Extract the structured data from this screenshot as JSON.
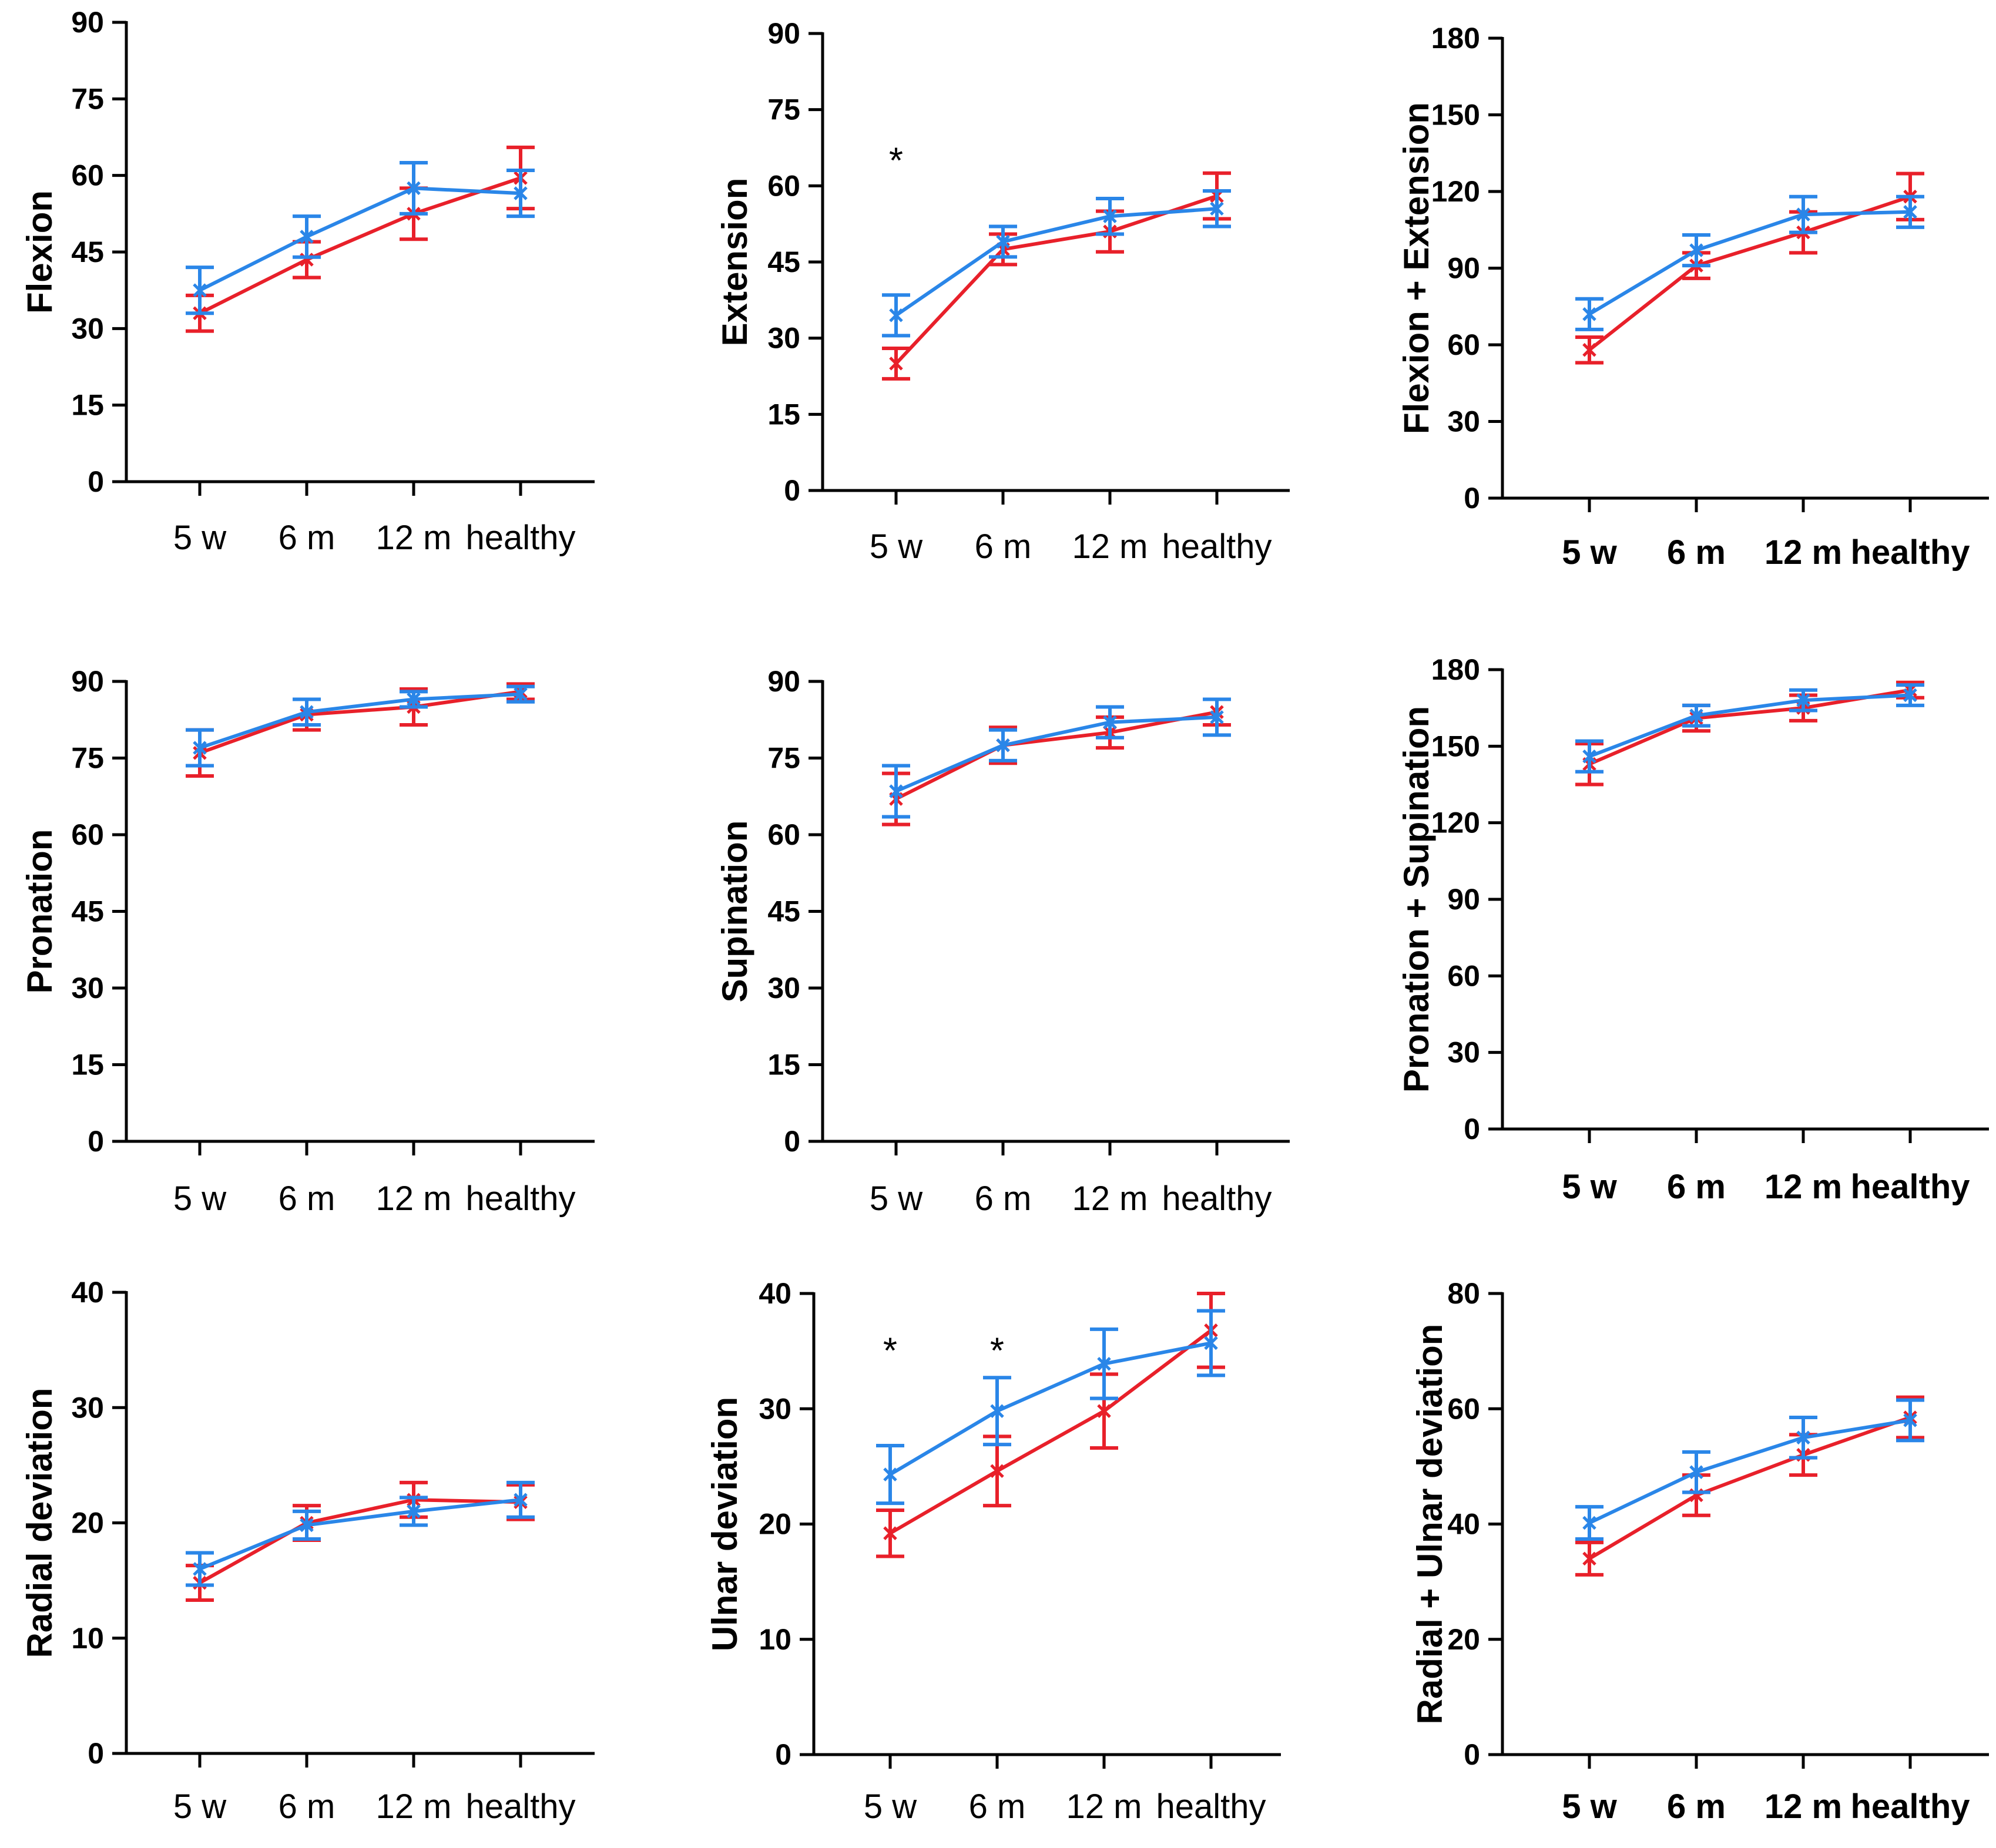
{
  "colors": {
    "red": "#e8202a",
    "blue": "#2a86e8",
    "axis": "#000000"
  },
  "chart_data": [
    {
      "type": "line",
      "ylabel": "Flexion",
      "ylim": [
        0,
        90
      ],
      "yticks": [
        0,
        15,
        30,
        45,
        60,
        75,
        90
      ],
      "categories": [
        "5 w",
        "6 m",
        "12 m",
        "healthy"
      ],
      "series": [
        {
          "name": "red",
          "color": "#e8202a",
          "values": [
            33,
            43.5,
            52.5,
            59.5
          ],
          "err": [
            3.5,
            3.5,
            5,
            6
          ]
        },
        {
          "name": "blue",
          "color": "#2a86e8",
          "values": [
            37.5,
            48,
            57.5,
            56.5
          ],
          "err": [
            4.5,
            4,
            5,
            4.5
          ]
        }
      ],
      "annotations": []
    },
    {
      "type": "line",
      "ylabel": "Extension",
      "ylim": [
        0,
        90
      ],
      "yticks": [
        0,
        15,
        30,
        45,
        60,
        75,
        90
      ],
      "categories": [
        "5 w",
        "6 m",
        "12 m",
        "healthy"
      ],
      "series": [
        {
          "name": "red",
          "color": "#e8202a",
          "values": [
            25,
            47.5,
            51,
            58
          ],
          "err": [
            3,
            3,
            4,
            4.5
          ]
        },
        {
          "name": "blue",
          "color": "#2a86e8",
          "values": [
            34.5,
            49,
            54,
            55.5
          ],
          "err": [
            4,
            3,
            3.5,
            3.5
          ]
        }
      ],
      "annotations": [
        {
          "category_index": 0,
          "y": 66,
          "text": "*"
        }
      ]
    },
    {
      "type": "line",
      "ylabel": "Flexion + Extension",
      "ylim": [
        0,
        180
      ],
      "yticks": [
        0,
        30,
        60,
        90,
        120,
        150,
        180
      ],
      "categories": [
        "5 w",
        "6 m",
        "12 m",
        "healthy"
      ],
      "bold_xticks": true,
      "series": [
        {
          "name": "red",
          "color": "#e8202a",
          "values": [
            58,
            91,
            104,
            118
          ],
          "err": [
            5,
            5,
            8,
            9
          ]
        },
        {
          "name": "blue",
          "color": "#2a86e8",
          "values": [
            72,
            97,
            111,
            112
          ],
          "err": [
            6,
            6,
            7,
            6
          ]
        }
      ],
      "annotations": []
    },
    {
      "type": "line",
      "ylabel": "Pronation",
      "ylim": [
        0,
        90
      ],
      "yticks": [
        0,
        15,
        30,
        45,
        60,
        75,
        90
      ],
      "categories": [
        "5 w",
        "6 m",
        "12 m",
        "healthy"
      ],
      "series": [
        {
          "name": "red",
          "color": "#e8202a",
          "values": [
            76,
            83.5,
            85,
            88
          ],
          "err": [
            4.5,
            3,
            3.5,
            1.5
          ]
        },
        {
          "name": "blue",
          "color": "#2a86e8",
          "values": [
            77,
            84,
            86.5,
            87.5
          ],
          "err": [
            3.5,
            2.5,
            1.5,
            1.5
          ]
        }
      ],
      "annotations": []
    },
    {
      "type": "line",
      "ylabel": "Supination",
      "ylim": [
        0,
        90
      ],
      "yticks": [
        0,
        15,
        30,
        45,
        60,
        75,
        90
      ],
      "categories": [
        "5 w",
        "6 m",
        "12 m",
        "healthy"
      ],
      "series": [
        {
          "name": "red",
          "color": "#e8202a",
          "values": [
            67,
            77.5,
            80,
            84
          ],
          "err": [
            5,
            3.5,
            3,
            2.5
          ]
        },
        {
          "name": "blue",
          "color": "#2a86e8",
          "values": [
            68.5,
            77.5,
            82,
            83
          ],
          "err": [
            5,
            3,
            3,
            3.5
          ]
        }
      ],
      "annotations": []
    },
    {
      "type": "line",
      "ylabel": "Pronation + Supination",
      "ylim": [
        0,
        180
      ],
      "yticks": [
        0,
        30,
        60,
        90,
        120,
        150,
        180
      ],
      "categories": [
        "5 w",
        "6 m",
        "12 m",
        "healthy"
      ],
      "bold_xticks": true,
      "series": [
        {
          "name": "red",
          "color": "#e8202a",
          "values": [
            143,
            161,
            165,
            172
          ],
          "err": [
            8,
            5,
            5,
            3
          ]
        },
        {
          "name": "blue",
          "color": "#2a86e8",
          "values": [
            146,
            162,
            168,
            170
          ],
          "err": [
            6,
            4,
            4,
            4
          ]
        }
      ],
      "annotations": []
    },
    {
      "type": "line",
      "ylabel": "Radial deviation",
      "ylim": [
        0,
        40
      ],
      "yticks": [
        0,
        10,
        20,
        30,
        40
      ],
      "categories": [
        "5 w",
        "6 m",
        "12 m",
        "healthy"
      ],
      "series": [
        {
          "name": "red",
          "color": "#e8202a",
          "values": [
            14.8,
            20,
            22,
            21.8
          ],
          "err": [
            1.5,
            1.5,
            1.5,
            1.5
          ]
        },
        {
          "name": "blue",
          "color": "#2a86e8",
          "values": [
            16,
            19.8,
            21,
            22
          ],
          "err": [
            1.4,
            1.2,
            1.2,
            1.5
          ]
        }
      ],
      "annotations": []
    },
    {
      "type": "line",
      "ylabel": "Ulnar deviation",
      "ylim": [
        0,
        40
      ],
      "yticks": [
        0,
        10,
        20,
        30,
        40
      ],
      "categories": [
        "5 w",
        "6 m",
        "12 m",
        "healthy"
      ],
      "series": [
        {
          "name": "red",
          "color": "#e8202a",
          "values": [
            19.2,
            24.6,
            29.8,
            36.8
          ],
          "err": [
            2,
            3,
            3.2,
            3.2
          ]
        },
        {
          "name": "blue",
          "color": "#2a86e8",
          "values": [
            24.3,
            29.8,
            33.9,
            35.7
          ],
          "err": [
            2.5,
            2.9,
            3,
            2.8
          ]
        }
      ],
      "annotations": [
        {
          "category_index": 0,
          "y": 35.5,
          "text": "*"
        },
        {
          "category_index": 1,
          "y": 35.5,
          "text": "*"
        }
      ]
    },
    {
      "type": "line",
      "ylabel": "Radial + Ulnar deviation",
      "ylim": [
        0,
        80
      ],
      "yticks": [
        0,
        20,
        40,
        60,
        80
      ],
      "categories": [
        "5 w",
        "6 m",
        "12 m",
        "healthy"
      ],
      "bold_xticks": true,
      "series": [
        {
          "name": "red",
          "color": "#e8202a",
          "values": [
            34,
            45,
            52,
            58.5
          ],
          "err": [
            2.8,
            3.5,
            3.5,
            3.5
          ]
        },
        {
          "name": "blue",
          "color": "#2a86e8",
          "values": [
            40.2,
            49,
            55,
            58
          ],
          "err": [
            2.8,
            3.5,
            3.5,
            3.5
          ]
        }
      ],
      "annotations": []
    }
  ]
}
